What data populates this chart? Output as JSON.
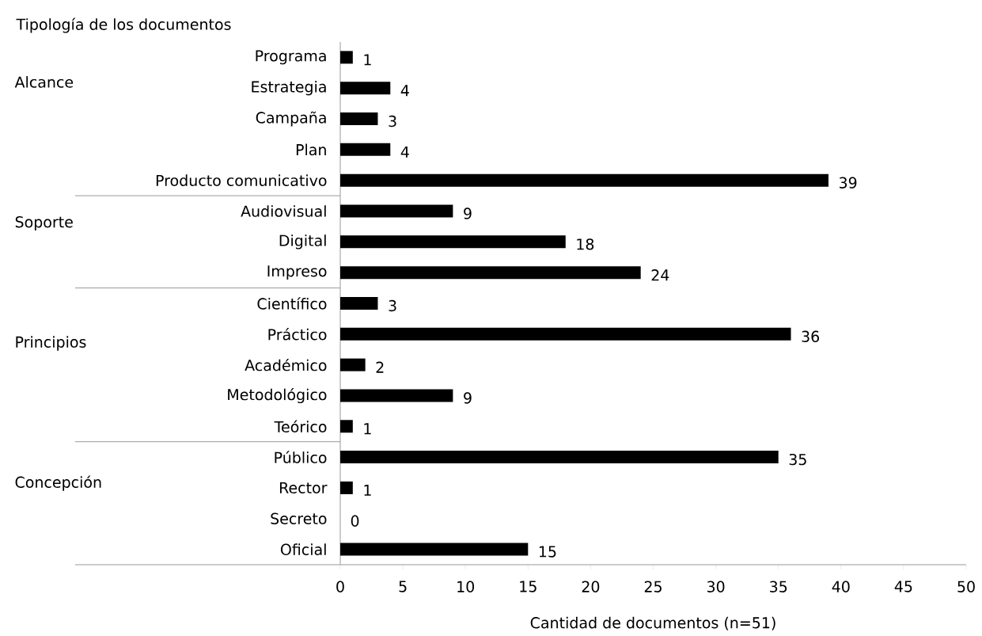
{
  "chart_data": {
    "type": "bar",
    "orientation": "horizontal",
    "title": "Tipología de los documentos",
    "xlabel": "Cantidad de documentos (n=51)",
    "categories": [
      "Programa",
      "Estrategia",
      "Campaña",
      "Plan",
      "Producto comunicativo",
      "Audiovisual",
      "Digital",
      "Impreso",
      "Científico",
      "Práctico",
      "Académico",
      "Metodológico",
      "Teórico",
      "Público",
      "Rector",
      "Secreto",
      "Oficial"
    ],
    "values": [
      1,
      4,
      3,
      4,
      39,
      9,
      18,
      24,
      3,
      36,
      2,
      9,
      1,
      35,
      1,
      0,
      15
    ],
    "color": "#000000",
    "xlim": [
      0,
      50
    ],
    "xticks": [
      0,
      5,
      10,
      15,
      20,
      25,
      30,
      35,
      40,
      45,
      50
    ],
    "data_labels": true,
    "grid": false,
    "annotations": [
      "Alcance",
      "Soporte",
      "Principios",
      "Concepción"
    ]
  }
}
